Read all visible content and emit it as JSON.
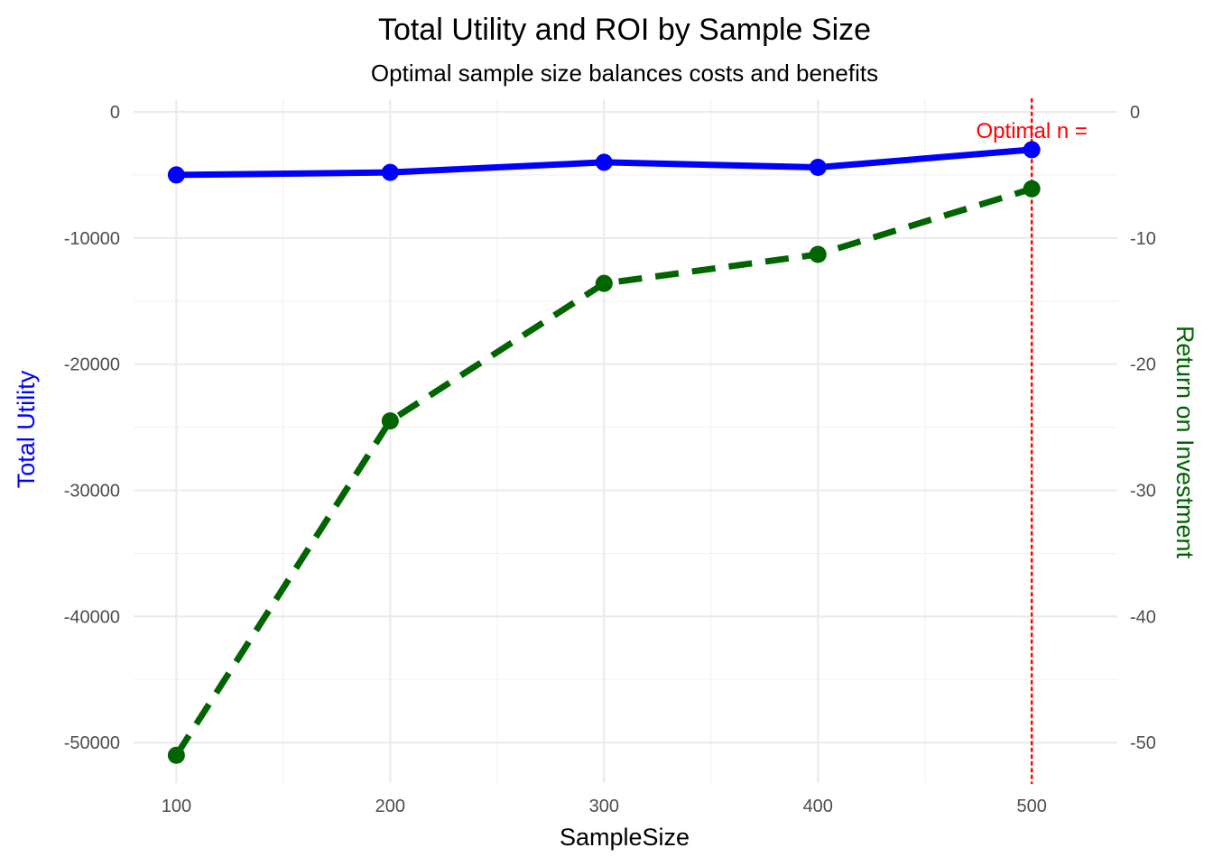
{
  "chart_data": {
    "type": "line",
    "title": "Total Utility and ROI by Sample Size",
    "subtitle": "Optimal sample size balances costs and benefits",
    "xlabel": "SampleSize",
    "ylabel_left": "Total Utility",
    "ylabel_right": "Return on Investment",
    "x": [
      100,
      200,
      300,
      400,
      500
    ],
    "x_ticks": [
      "100",
      "200",
      "300",
      "400",
      "500"
    ],
    "xlim": [
      80,
      540
    ],
    "ylim_left": [
      -53200,
      1000
    ],
    "ylim_right": [
      -53.2,
      1.0
    ],
    "y_ticks_left": [
      "0",
      "-10000",
      "-20000",
      "-30000",
      "-40000",
      "-50000"
    ],
    "y_ticks_right": [
      "0",
      "-10",
      "-20",
      "-30",
      "-40",
      "-50"
    ],
    "grid": true,
    "series": [
      {
        "axis": "left",
        "color": "#0000ff",
        "line_style": "solid",
        "values": [
          -5000,
          -4800,
          -4000,
          -4400,
          -3000
        ]
      },
      {
        "axis": "right",
        "color": "#006400",
        "line_style": "dashed",
        "values": [
          -51.0,
          -24.5,
          -13.6,
          -11.3,
          -6.1
        ]
      }
    ],
    "annotations": [
      {
        "type": "vline",
        "x": 500,
        "color": "#ff0000",
        "line_style": "dotted"
      },
      {
        "type": "text",
        "text": "Optimal n =",
        "x": 500,
        "y": -1500,
        "color": "#ff0000"
      }
    ]
  }
}
